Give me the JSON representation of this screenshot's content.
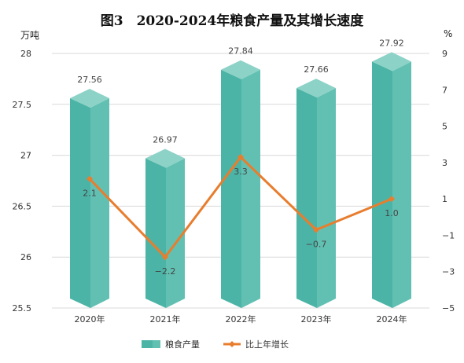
{
  "title": "图3　2020-2024年粮食产量及其增长速度",
  "left_unit": "万吨",
  "right_unit": "%",
  "colors": {
    "bar_front": "#4cb4a6",
    "bar_side": "#62c0b3",
    "bar_top": "#8cd2c7",
    "line": "#e87d2e"
  },
  "chart_data": {
    "type": "bar",
    "categories": [
      "2020年",
      "2021年",
      "2022年",
      "2023年",
      "2024年"
    ],
    "series": [
      {
        "name": "粮食产量",
        "type": "bar",
        "axis": "left",
        "values": [
          27.56,
          26.97,
          27.84,
          27.66,
          27.92
        ],
        "labels": [
          "27.56",
          "26.97",
          "27.84",
          "27.66",
          "27.92"
        ]
      },
      {
        "name": "比上年增长",
        "type": "line",
        "axis": "right",
        "values": [
          2.1,
          -2.2,
          3.3,
          -0.7,
          1.0
        ],
        "labels": [
          "2.1",
          "−2.2",
          "3.3",
          "−0.7",
          "1.0"
        ]
      }
    ],
    "left_axis": {
      "ylim": [
        25.5,
        28
      ],
      "ticks": [
        "25.5",
        "26",
        "26.5",
        "27",
        "27.5",
        "28"
      ],
      "values": [
        25.5,
        26,
        26.5,
        27,
        27.5,
        28
      ]
    },
    "right_axis": {
      "ylim": [
        -5,
        9
      ],
      "ticks": [
        "−5",
        "−3",
        "−1",
        "1",
        "3",
        "5",
        "7",
        "9"
      ],
      "values": [
        -5,
        -3,
        -1,
        1,
        3,
        5,
        7,
        9
      ]
    },
    "grid": true,
    "legend": "bottom"
  }
}
